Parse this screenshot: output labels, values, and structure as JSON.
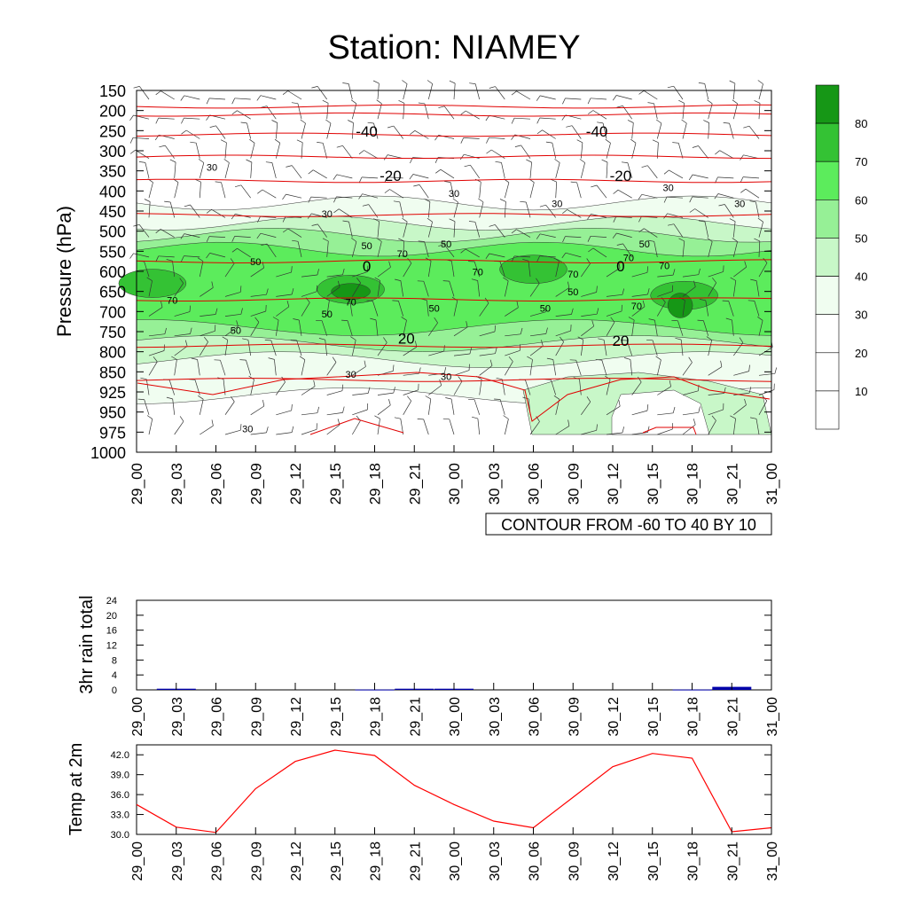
{
  "title": "Station: NIAMEY",
  "time_labels": [
    "29_00",
    "29_03",
    "29_06",
    "29_09",
    "29_12",
    "29_15",
    "29_18",
    "29_21",
    "30_00",
    "30_03",
    "30_06",
    "30_09",
    "30_12",
    "30_15",
    "30_18",
    "30_21",
    "31_00"
  ],
  "chart_data": [
    {
      "type": "heatmap",
      "title": "Station: NIAMEY",
      "ylabel": "Pressure (hPa)",
      "y_levels": [
        150,
        200,
        250,
        300,
        350,
        400,
        450,
        500,
        550,
        600,
        650,
        700,
        750,
        800,
        850,
        925,
        950,
        975,
        1000
      ],
      "x": [
        "29_00",
        "29_03",
        "29_06",
        "29_09",
        "29_12",
        "29_15",
        "29_18",
        "29_21",
        "30_00",
        "30_03",
        "30_06",
        "30_09",
        "30_12",
        "30_15",
        "30_18",
        "30_21",
        "31_00"
      ],
      "colorbar": {
        "ticks": [
          10,
          20,
          30,
          40,
          50,
          60,
          70,
          80
        ],
        "colors": [
          "#ffffff",
          "#ffffff",
          "#ffffff",
          "#f0fdf0",
          "#c8f7c8",
          "#96f096",
          "#5cec5c",
          "#34c234",
          "#169716"
        ]
      },
      "annotation": "CONTOUR FROM -60 TO 40 BY 10",
      "temperature_contour_labels": [
        "-40",
        "-40",
        "-20",
        "-20",
        "0",
        "0",
        "20",
        "20"
      ],
      "humidity_contour_labels": [
        "30",
        "30",
        "30",
        "30",
        "30",
        "30",
        "30",
        "30",
        "30",
        "50",
        "50",
        "50",
        "50",
        "50",
        "50",
        "50",
        "50",
        "50",
        "70",
        "70",
        "70",
        "70",
        "70",
        "70",
        "70",
        "70"
      ]
    },
    {
      "type": "bar",
      "ylabel": "3hr rain total",
      "ylim": [
        0,
        24
      ],
      "yticks": [
        "0",
        "4",
        "8",
        "12",
        "16",
        "20",
        "24"
      ],
      "categories": [
        "29_00",
        "29_03",
        "29_06",
        "29_09",
        "29_12",
        "29_15",
        "29_18",
        "29_21",
        "30_00",
        "30_03",
        "30_06",
        "30_09",
        "30_12",
        "30_15",
        "30_18",
        "30_21",
        "31_00"
      ],
      "values": [
        0,
        0.3,
        0,
        0,
        0,
        0,
        0.1,
        0.3,
        0.3,
        0,
        0,
        0,
        0,
        0,
        0.1,
        0.8,
        0
      ],
      "color": "#0000aa"
    },
    {
      "type": "line",
      "ylabel": "Temp at 2m",
      "ylim": [
        30.0,
        43.5
      ],
      "yticks": [
        "30.0",
        "33.0",
        "36.0",
        "39.0",
        "42.0"
      ],
      "x": [
        "29_00",
        "29_03",
        "29_06",
        "29_09",
        "29_12",
        "29_15",
        "29_18",
        "29_21",
        "30_00",
        "30_03",
        "30_06",
        "30_09",
        "30_12",
        "30_15",
        "30_18",
        "30_21",
        "31_00"
      ],
      "values": [
        34.5,
        31.1,
        30.3,
        36.9,
        41.0,
        42.7,
        41.9,
        37.4,
        34.5,
        32.0,
        31.0,
        35.6,
        40.2,
        42.2,
        41.5,
        30.4,
        31.0
      ],
      "color": "#ff0000"
    }
  ]
}
